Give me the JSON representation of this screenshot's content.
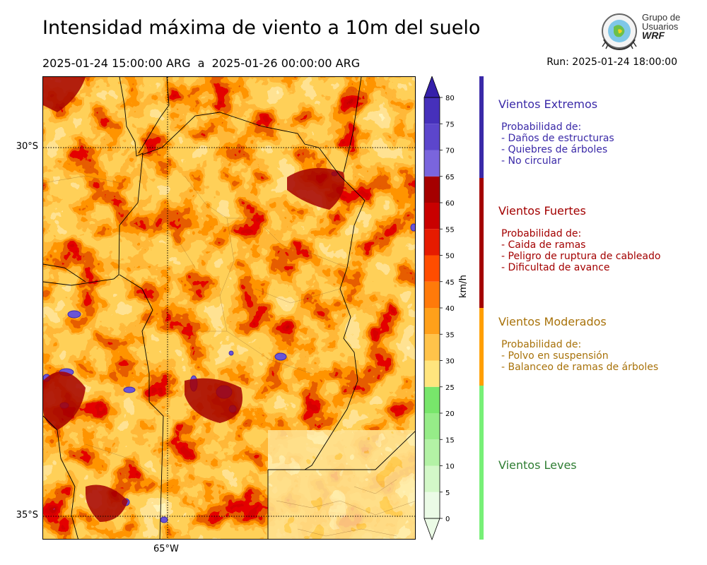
{
  "title": "Intensidad máxima de viento a 10m del suelo",
  "period": "2025-01-24 15:00:00 ARG  a  2025-01-26 00:00:00 ARG",
  "run": "Run: 2025-01-24 18:00:00",
  "logo": {
    "line1": "Grupo de",
    "line2": "Usuarios",
    "line3": "WRF"
  },
  "map": {
    "lat_labels": [
      "30°S",
      "35°S"
    ],
    "lon_labels": [
      "65°W"
    ]
  },
  "colorbar": {
    "unit": "km/h",
    "ticks": [
      0,
      5,
      10,
      15,
      20,
      25,
      30,
      35,
      40,
      45,
      50,
      55,
      60,
      65,
      70,
      75,
      80
    ],
    "colors": [
      "#ebfbe6",
      "#d3f8c8",
      "#b3f2a5",
      "#96ec88",
      "#78e66b",
      "#ffe57e",
      "#ffc34a",
      "#ffa01a",
      "#ff7a0a",
      "#ff4d00",
      "#e61b00",
      "#c90000",
      "#a50000",
      "#7a65dd",
      "#5c46cc",
      "#4630bb",
      "#3520aa"
    ],
    "colors_note_levels": [
      "0-5",
      "5-10",
      "10-15",
      "15-20",
      "20-25",
      "25-30",
      "30-35",
      "35-40",
      "40-45",
      "45-50",
      "50-55",
      "55-60",
      "60-65",
      "65-70",
      "70-75",
      "75-80",
      ">80"
    ]
  },
  "categories": [
    {
      "name": "Vientos Extremos",
      "color": "#3a29a8",
      "from": 65,
      "to": 80,
      "intro": "Probabilidad de:",
      "items": [
        "- Daños de estructuras",
        "- Quiebres de árboles",
        "- No circular"
      ]
    },
    {
      "name": "Vientos Fuertes",
      "color": "#a30000",
      "from": 40,
      "to": 65,
      "intro": "Probabilidad de:",
      "items": [
        "- Caida de ramas",
        "- Peligro de ruptura de cableado",
        "- Dificultad de avance"
      ]
    },
    {
      "name": "Vientos Moderados",
      "color": "#a8720a",
      "bar_color": "#ff9f00",
      "from": 25,
      "to": 40,
      "intro": "Probabilidad de:",
      "items": [
        "- Polvo en suspensión",
        "- Balanceo de ramas de árboles"
      ]
    },
    {
      "name": "Vientos Leves",
      "color": "#2e7d32",
      "bar_color": "#77f077",
      "from": 0,
      "to": 25,
      "intro": "",
      "items": []
    }
  ]
}
